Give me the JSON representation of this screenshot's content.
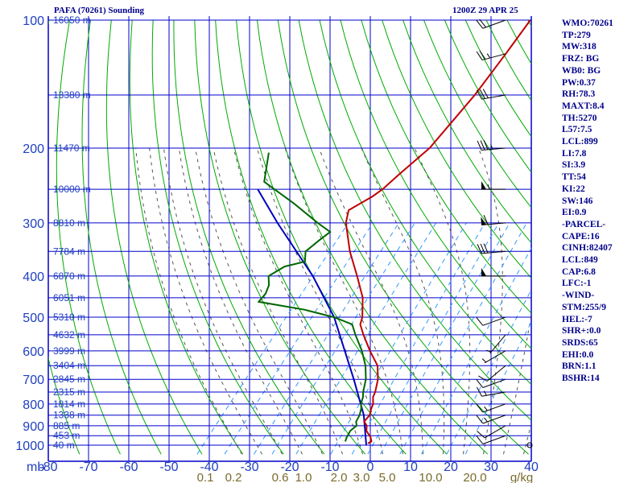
{
  "header": {
    "station": "PAFA (70261) Sounding",
    "time": "1200Z 29 APR 25"
  },
  "chart_data": {
    "type": "skew-t",
    "pressure_unit_label": "mb",
    "mixing_ratio_unit_label": "g/kg",
    "pressure_ticks": [
      100,
      200,
      300,
      400,
      500,
      600,
      700,
      800,
      900,
      1000
    ],
    "temperature_ticks": [
      -80,
      -70,
      -60,
      -50,
      -40,
      -30,
      -20,
      -10,
      0,
      10,
      20,
      30,
      40
    ],
    "temperature_tick_labels": [
      "-80",
      "-70",
      "-60",
      "-50",
      "-40",
      "-30",
      "-20",
      "-10",
      "0",
      "10",
      "20",
      "30",
      "40"
    ],
    "mixing_ratio_ticks": [
      0.1,
      0.2,
      0.6,
      1.0,
      2.0,
      3.0,
      5.0,
      10.0,
      20.0
    ],
    "mixing_ratio_tick_labels": [
      "0.1",
      "0.2",
      "0.6",
      "1.0",
      "2.0",
      "3.0",
      "5.0",
      "10.0",
      "20.0"
    ],
    "height_labels": [
      {
        "p": 100,
        "text": "16050 m"
      },
      {
        "p": 150,
        "text": "13380 m"
      },
      {
        "p": 200,
        "text": "11470 m"
      },
      {
        "p": 250,
        "text": "10000 m"
      },
      {
        "p": 300,
        "text": "8810 m"
      },
      {
        "p": 350,
        "text": "7784 m"
      },
      {
        "p": 400,
        "text": "6870 m"
      },
      {
        "p": 450,
        "text": "6051 m"
      },
      {
        "p": 500,
        "text": "5310 m"
      },
      {
        "p": 550,
        "text": "4632 m"
      },
      {
        "p": 600,
        "text": "3999 m"
      },
      {
        "p": 650,
        "text": "3404 m"
      },
      {
        "p": 700,
        "text": "2845 m"
      },
      {
        "p": 750,
        "text": "2315 m"
      },
      {
        "p": 800,
        "text": "1814 m"
      },
      {
        "p": 850,
        "text": "1338 m"
      },
      {
        "p": 900,
        "text": "885 m"
      },
      {
        "p": 950,
        "text": "453 m"
      },
      {
        "p": 1000,
        "text": "40 m"
      }
    ],
    "temperature": [
      {
        "p": 990,
        "t": -1
      },
      {
        "p": 980,
        "t": -0.5
      },
      {
        "p": 960,
        "t": -1.5
      },
      {
        "p": 925,
        "t": -4
      },
      {
        "p": 900,
        "t": -5
      },
      {
        "p": 880,
        "t": -6.5
      },
      {
        "p": 850,
        "t": -6.5
      },
      {
        "p": 820,
        "t": -7.5
      },
      {
        "p": 800,
        "t": -8
      },
      {
        "p": 770,
        "t": -9.5
      },
      {
        "p": 750,
        "t": -10
      },
      {
        "p": 700,
        "t": -12
      },
      {
        "p": 650,
        "t": -15
      },
      {
        "p": 600,
        "t": -20
      },
      {
        "p": 550,
        "t": -25
      },
      {
        "p": 520,
        "t": -28
      },
      {
        "p": 500,
        "t": -29
      },
      {
        "p": 450,
        "t": -33
      },
      {
        "p": 400,
        "t": -39
      },
      {
        "p": 350,
        "t": -46
      },
      {
        "p": 300,
        "t": -53
      },
      {
        "p": 280,
        "t": -55
      },
      {
        "p": 260,
        "t": -52
      },
      {
        "p": 250,
        "t": -51
      },
      {
        "p": 230,
        "t": -50
      },
      {
        "p": 200,
        "t": -48
      },
      {
        "p": 170,
        "t": -48
      },
      {
        "p": 150,
        "t": -48
      },
      {
        "p": 120,
        "t": -49
      },
      {
        "p": 100,
        "t": -50
      }
    ],
    "dewpoint": [
      {
        "p": 980,
        "t": -7
      },
      {
        "p": 960,
        "t": -7.5
      },
      {
        "p": 925,
        "t": -8
      },
      {
        "p": 900,
        "t": -7.5
      },
      {
        "p": 880,
        "t": -8.5
      },
      {
        "p": 850,
        "t": -9
      },
      {
        "p": 820,
        "t": -10
      },
      {
        "p": 800,
        "t": -11
      },
      {
        "p": 770,
        "t": -12
      },
      {
        "p": 750,
        "t": -13
      },
      {
        "p": 700,
        "t": -15
      },
      {
        "p": 650,
        "t": -18
      },
      {
        "p": 600,
        "t": -22
      },
      {
        "p": 550,
        "t": -27
      },
      {
        "p": 520,
        "t": -30
      },
      {
        "p": 500,
        "t": -36
      },
      {
        "p": 480,
        "t": -45
      },
      {
        "p": 460,
        "t": -58
      },
      {
        "p": 440,
        "t": -58
      },
      {
        "p": 420,
        "t": -59
      },
      {
        "p": 400,
        "t": -61
      },
      {
        "p": 380,
        "t": -59
      },
      {
        "p": 370,
        "t": -55
      },
      {
        "p": 350,
        "t": -57
      },
      {
        "p": 330,
        "t": -56
      },
      {
        "p": 315,
        "t": -55
      },
      {
        "p": 300,
        "t": -60
      },
      {
        "p": 270,
        "t": -70
      },
      {
        "p": 240,
        "t": -82
      },
      {
        "p": 205,
        "t": -87
      }
    ],
    "parcel": [
      {
        "p": 1000,
        "t": -1
      },
      {
        "p": 849,
        "t": -8
      },
      {
        "p": 700,
        "t": -18
      },
      {
        "p": 500,
        "t": -36
      },
      {
        "p": 400,
        "t": -50
      },
      {
        "p": 300,
        "t": -70
      },
      {
        "p": 250,
        "t": -82
      }
    ],
    "wind_barbs": [
      {
        "p": 1000,
        "speed_kt": 0,
        "dir": 0
      },
      {
        "p": 950,
        "speed_kt": 10,
        "dir": 250
      },
      {
        "p": 900,
        "speed_kt": 10,
        "dir": 240
      },
      {
        "p": 850,
        "speed_kt": 15,
        "dir": 250
      },
      {
        "p": 800,
        "speed_kt": 15,
        "dir": 250
      },
      {
        "p": 750,
        "speed_kt": 15,
        "dir": 260
      },
      {
        "p": 700,
        "speed_kt": 10,
        "dir": 250
      },
      {
        "p": 650,
        "speed_kt": 10,
        "dir": 230
      },
      {
        "p": 600,
        "speed_kt": 5,
        "dir": 240
      },
      {
        "p": 550,
        "speed_kt": 5,
        "dir": 220
      },
      {
        "p": 500,
        "speed_kt": 10,
        "dir": 250
      },
      {
        "p": 400,
        "speed_kt": 50,
        "dir": 270
      },
      {
        "p": 350,
        "speed_kt": 30,
        "dir": 265
      },
      {
        "p": 300,
        "speed_kt": 60,
        "dir": 265
      },
      {
        "p": 250,
        "speed_kt": 55,
        "dir": 270
      },
      {
        "p": 200,
        "speed_kt": 35,
        "dir": 265
      },
      {
        "p": 150,
        "speed_kt": 30,
        "dir": 260
      },
      {
        "p": 120,
        "speed_kt": 25,
        "dir": 255
      },
      {
        "p": 100,
        "speed_kt": 20,
        "dir": 250
      }
    ]
  },
  "indices": [
    "WMO:70261",
    "TP:279",
    "MW:318",
    "FRZ: BG",
    "WB0: BG",
    "PW:0.37",
    "RH:78.3",
    "MAXT:8.4",
    "TH:5270",
    "L57:7.5",
    "LCL:899",
    "LI:7.8",
    "SI:3.9",
    "TT:54",
    "KI:22",
    "SW:146",
    "EI:0.9",
    "-PARCEL-",
    "CAPE:16",
    "CINH:82407",
    "LCL:849",
    "CAP:6.8",
    "LFC:-1",
    "-WIND-",
    "STM:255/9",
    "HEL:-7",
    "SHR+:0.0",
    "SRDS:65",
    "EHI:0.0",
    "BRN:1.1",
    "BSHR:14"
  ],
  "colors": {
    "grid": "#0000cc",
    "dry_adiabat": "#00aa00",
    "moist_adiabat": "#555555",
    "mixing_ratio": "#3399ff",
    "temperature": "#c00000",
    "dewpoint": "#006600",
    "parcel": "#0000bb"
  }
}
